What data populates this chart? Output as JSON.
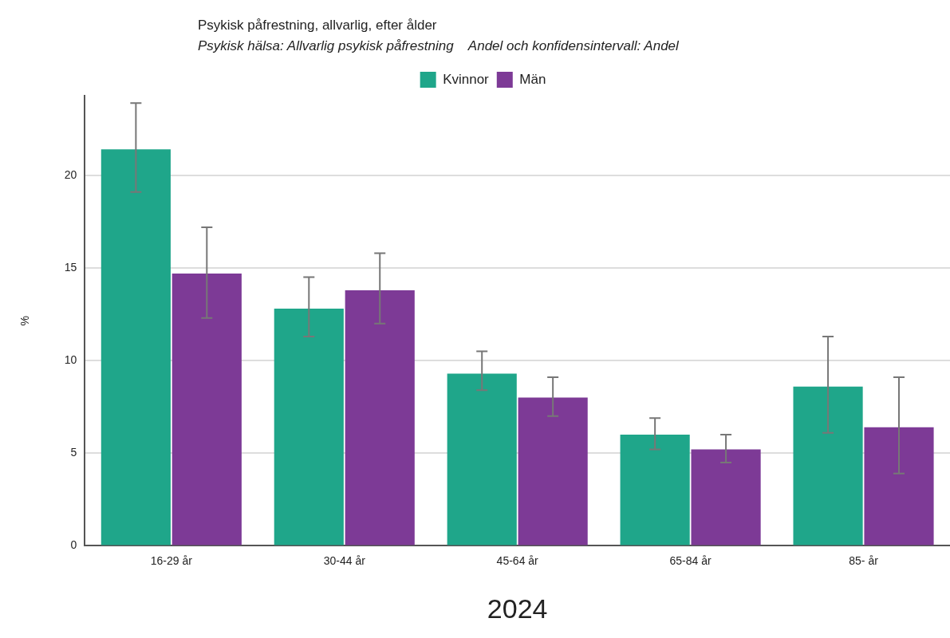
{
  "chart_data": {
    "type": "bar",
    "title": "Psykisk påfrestning, allvarlig, efter ålder",
    "subtitle": "Psykisk hälsa: Allvarlig psykisk påfrestning    Andel och konfidensintervall: Andel",
    "xlabel": "2024",
    "ylabel": "%",
    "categories": [
      "16-29 år",
      "30-44 år",
      "45-64 år",
      "65-84 år",
      "85- år"
    ],
    "series": [
      {
        "name": "Kvinnor",
        "color": "#1fa68a",
        "values": [
          21.4,
          12.8,
          9.3,
          6.0,
          8.6
        ],
        "errors": [
          [
            19.1,
            23.9
          ],
          [
            11.3,
            14.5
          ],
          [
            8.4,
            10.5
          ],
          [
            5.2,
            6.9
          ],
          [
            6.1,
            11.3
          ]
        ]
      },
      {
        "name": "Män",
        "color": "#7d3a96",
        "values": [
          14.7,
          13.8,
          8.0,
          5.2,
          6.4
        ],
        "errors": [
          [
            12.3,
            17.2
          ],
          [
            12.0,
            15.8
          ],
          [
            7.0,
            9.1
          ],
          [
            4.5,
            6.0
          ],
          [
            3.9,
            9.1
          ]
        ]
      }
    ],
    "ylim": [
      0,
      24.3
    ],
    "yticks": [
      0,
      5,
      10,
      15,
      20
    ],
    "grid": "y",
    "legend": "top"
  }
}
